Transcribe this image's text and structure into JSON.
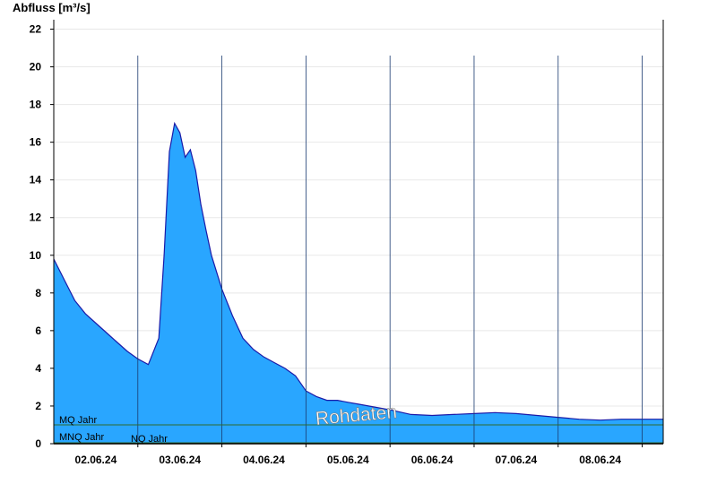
{
  "colors": {
    "area_fill": "#29a6ff",
    "area_line": "#1a1aa8",
    "reference_line": "#2e6b2e",
    "grid": "#e8e8e8",
    "axis": "#000000"
  },
  "watermark": "Rohdaten",
  "chart_data": {
    "type": "area",
    "ylabel": "Abfluss [m³/s]",
    "xlabel": "",
    "ylim": [
      0,
      22.5
    ],
    "yticks": [
      0,
      2,
      4,
      6,
      8,
      10,
      12,
      14,
      16,
      18,
      20,
      22
    ],
    "xlim": [
      "2024-06-01 12:00",
      "2024-06-08 18:00"
    ],
    "day_boundaries": [
      "2024-06-02 12:00",
      "2024-06-03 12:00",
      "2024-06-04 12:00",
      "2024-06-05 12:00",
      "2024-06-06 12:00",
      "2024-06-07 12:00",
      "2024-06-08 12:00"
    ],
    "xtick_labels": [
      {
        "label": "02.06.24",
        "at": "2024-06-02 00:00"
      },
      {
        "label": "03.06.24",
        "at": "2024-06-03 00:00"
      },
      {
        "label": "04.06.24",
        "at": "2024-06-04 00:00"
      },
      {
        "label": "05.06.24",
        "at": "2024-06-05 00:00"
      },
      {
        "label": "06.06.24",
        "at": "2024-06-06 00:00"
      },
      {
        "label": "07.06.24",
        "at": "2024-06-07 00:00"
      },
      {
        "label": "08.06.24",
        "at": "2024-06-08 00:00"
      }
    ],
    "grid": true,
    "series": [
      {
        "x": [
          "2024-06-01 12:00",
          "2024-06-01 15:00",
          "2024-06-01 18:00",
          "2024-06-01 21:00",
          "2024-06-02 00:00",
          "2024-06-02 03:00",
          "2024-06-02 06:00",
          "2024-06-02 09:00",
          "2024-06-02 12:00",
          "2024-06-02 15:00",
          "2024-06-02 18:00",
          "2024-06-02 19:30",
          "2024-06-02 21:00",
          "2024-06-02 22:30",
          "2024-06-03 00:00",
          "2024-06-03 01:30",
          "2024-06-03 03:00",
          "2024-06-03 04:30",
          "2024-06-03 06:00",
          "2024-06-03 07:30",
          "2024-06-03 09:00",
          "2024-06-03 12:00",
          "2024-06-03 15:00",
          "2024-06-03 18:00",
          "2024-06-03 21:00",
          "2024-06-04 00:00",
          "2024-06-04 03:00",
          "2024-06-04 06:00",
          "2024-06-04 09:00",
          "2024-06-04 12:00",
          "2024-06-04 15:00",
          "2024-06-04 18:00",
          "2024-06-04 21:00",
          "2024-06-05 00:00",
          "2024-06-05 03:00",
          "2024-06-05 06:00",
          "2024-06-05 12:00",
          "2024-06-05 18:00",
          "2024-06-06 00:00",
          "2024-06-06 06:00",
          "2024-06-06 12:00",
          "2024-06-06 18:00",
          "2024-06-07 00:00",
          "2024-06-07 06:00",
          "2024-06-07 12:00",
          "2024-06-07 18:00",
          "2024-06-08 00:00",
          "2024-06-08 06:00",
          "2024-06-08 12:00",
          "2024-06-08 18:00"
        ],
        "y": [
          9.8,
          8.7,
          7.6,
          6.9,
          6.4,
          5.9,
          5.4,
          4.9,
          4.5,
          4.2,
          5.6,
          10.0,
          15.5,
          17.0,
          16.5,
          15.2,
          15.6,
          14.5,
          12.7,
          11.3,
          10.0,
          8.2,
          6.8,
          5.6,
          5.0,
          4.6,
          4.3,
          4.0,
          3.6,
          2.8,
          2.5,
          2.3,
          2.3,
          2.2,
          2.1,
          2.0,
          1.8,
          1.55,
          1.5,
          1.55,
          1.6,
          1.65,
          1.6,
          1.5,
          1.4,
          1.3,
          1.25,
          1.3,
          1.3,
          1.3
        ]
      }
    ],
    "reference_lines": [
      {
        "label": "MQ Jahr",
        "value": 1.0
      },
      {
        "label": "MNQ Jahr",
        "value": 0.05
      },
      {
        "label": "NQ Jahr",
        "value": 0.02
      }
    ]
  }
}
